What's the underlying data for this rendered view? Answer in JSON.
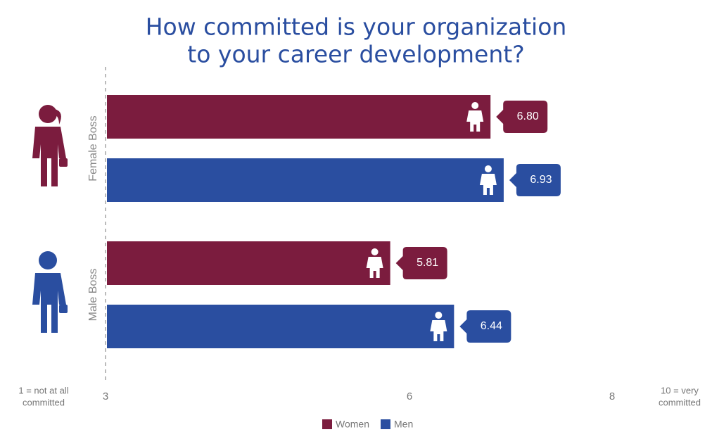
{
  "chart_data": {
    "type": "hbar",
    "title": [
      "How committed is your organization",
      "to your career development?"
    ],
    "categories": [
      "Female Boss",
      "Male Boss"
    ],
    "series": [
      {
        "name": "Women",
        "color": "#7b1c3e",
        "values": [
          6.8,
          5.81
        ],
        "value_labels": [
          "6.80",
          "5.81"
        ]
      },
      {
        "name": "Men",
        "color": "#2a4ea0",
        "values": [
          6.93,
          6.44
        ],
        "value_labels": [
          "6.93",
          "6.44"
        ]
      }
    ],
    "xlim": [
      3,
      8
    ],
    "xticks": [
      3,
      6,
      8
    ],
    "x_min_label": [
      "1 = not at all",
      "committed"
    ],
    "x_max_label": [
      "10 = very",
      "committed"
    ],
    "legend": "bottom"
  }
}
